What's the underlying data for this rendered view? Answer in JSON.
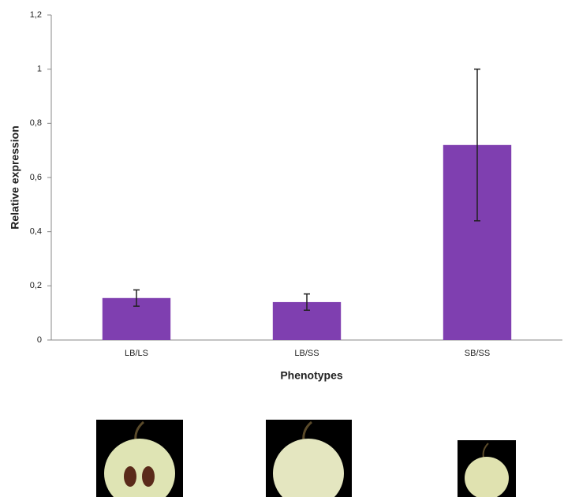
{
  "chart_data": {
    "type": "bar",
    "y_label": "Relative expression",
    "x_label": "Phenotypes",
    "categories": [
      "LB/LS",
      "LB/SS",
      "SB/SS"
    ],
    "values": [
      0.155,
      0.14,
      0.72
    ],
    "errors": [
      0.03,
      0.03,
      0.28
    ],
    "color": "#7f3fb0",
    "ylim": [
      0,
      1.2
    ],
    "yticks": [
      0,
      {
        "value": 0.2,
        "label": "0,2"
      },
      {
        "value": 0.4,
        "label": "0,4"
      },
      {
        "value": 0.6,
        "label": "0,6"
      },
      {
        "value": 0.8,
        "label": "0,8"
      },
      1,
      {
        "value": 1.2,
        "label": "1,2"
      }
    ],
    "grid": false
  }
}
